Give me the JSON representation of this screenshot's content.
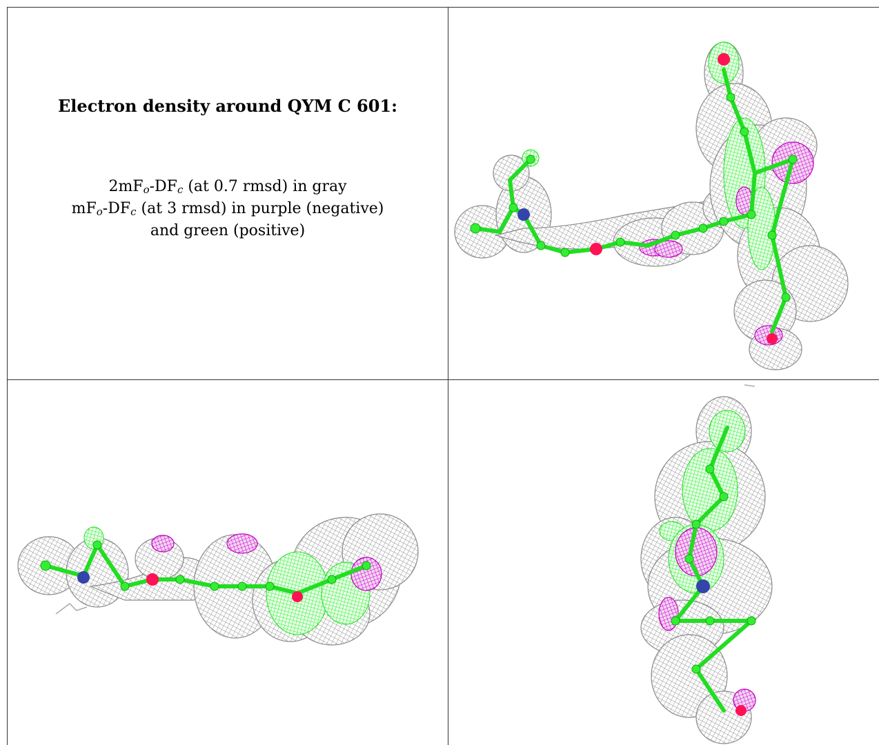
{
  "panel_text": {
    "title": "Electron density around QYM C 601:",
    "line1": {
      "pre": "2mF",
      "sub1": "o",
      "mid": "-DF",
      "sub2": "c",
      "post": " (at 0.7 rmsd) in gray"
    },
    "line2": {
      "pre": "mF",
      "sub1": "o",
      "mid": "-DF",
      "sub2": "c",
      "post": " (at 3 rmsd) in purple (negative)"
    },
    "line3": "and green (positive)"
  },
  "colors": {
    "mesh_gray": "#9a9a9a",
    "mesh_green": "#22ff22",
    "mesh_purple": "#cc00cc",
    "atom_carbon": "#33ee33",
    "atom_nitrogen": "#3344aa",
    "atom_oxygen": "#ff1155",
    "border": "#333333"
  },
  "panels": [
    {
      "id": "view-1",
      "content": "density-rendering"
    },
    {
      "id": "view-2",
      "content": "density-rendering"
    },
    {
      "id": "view-3",
      "content": "density-rendering"
    }
  ]
}
